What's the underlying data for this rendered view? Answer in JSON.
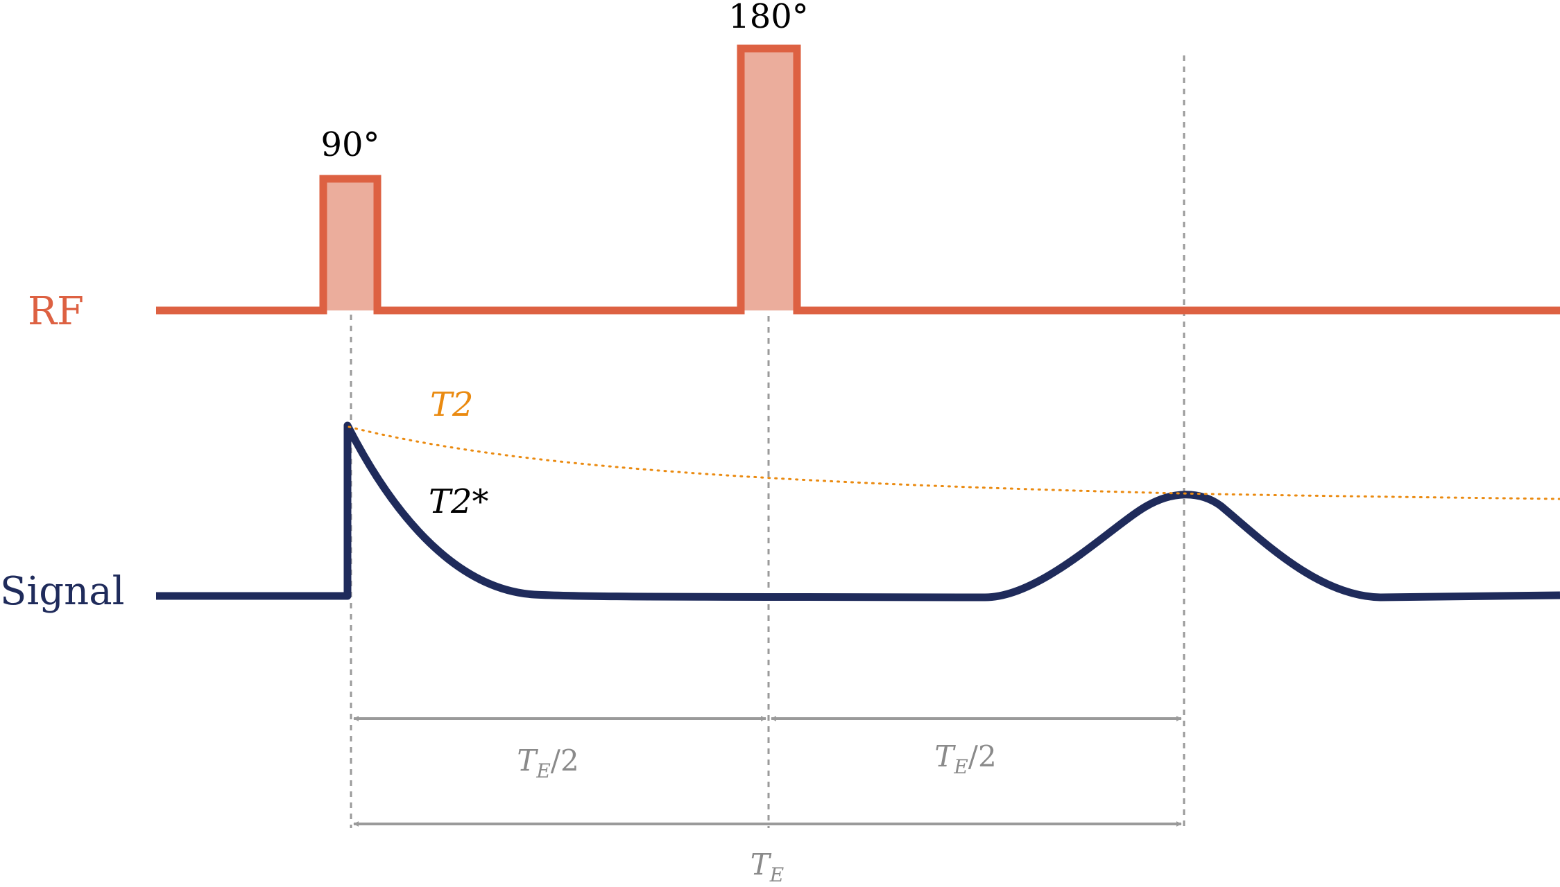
{
  "colors": {
    "rf": "#dd6142",
    "rf_fill": "#ebad9c",
    "signal": "#1f2b5b",
    "t2": "#ea8a10",
    "t2_star": "#000000",
    "guide": "#9a9a9a",
    "arrow": "#9a9a9a",
    "background": "#ffffff"
  },
  "labels": {
    "rf": "RF",
    "signal": "Signal",
    "pulse_90": "90°",
    "pulse_180": "180°",
    "t2": "T2",
    "t2_star": "T2*",
    "half_te_left": {
      "main": "T",
      "sub": "E",
      "tail": "/2"
    },
    "half_te_right": {
      "main": "T",
      "sub": "E",
      "tail": "/2"
    },
    "te": {
      "main": "T",
      "sub": "E"
    }
  }
}
